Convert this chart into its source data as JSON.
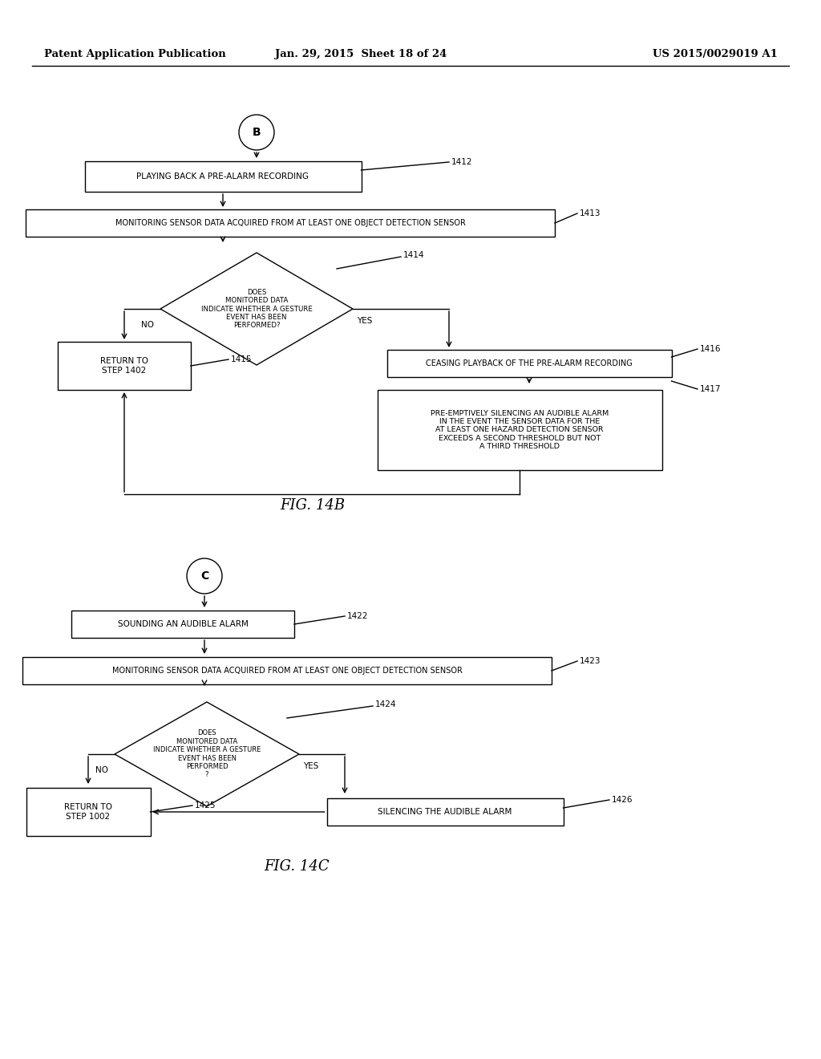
{
  "header_left": "Patent Application Publication",
  "header_mid": "Jan. 29, 2015  Sheet 18 of 24",
  "header_right": "US 2015/0029019 A1",
  "fig14b_label": "FIG. 14B",
  "fig14c_label": "FIG. 14C",
  "bg_color": "#ffffff",
  "text_color": "#000000"
}
